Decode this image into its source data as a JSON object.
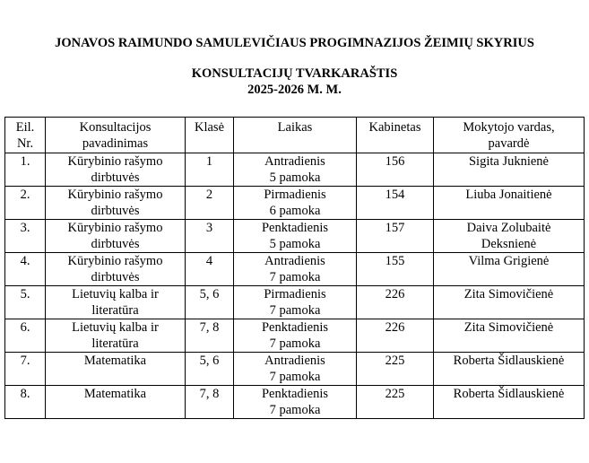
{
  "header": {
    "school": "JONAVOS RAIMUNDO SAMULEVIČIAUS PROGIMNAZIJOS ŽEIMIŲ SKYRIUS",
    "title": "KONSULTACIJŲ TVARKARAŠTIS",
    "year": "2025-2026 M. M."
  },
  "table": {
    "columns": [
      [
        "Eil.",
        "Nr."
      ],
      [
        "Konsultacijos",
        "pavadinimas"
      ],
      [
        "Klasė"
      ],
      [
        "Laikas"
      ],
      [
        "Kabinetas"
      ],
      [
        "Mokytojo vardas,",
        "pavardė"
      ]
    ],
    "rows": [
      [
        [
          "1."
        ],
        [
          "Kūrybinio rašymo",
          "dirbtuvės"
        ],
        [
          "1"
        ],
        [
          "Antradienis",
          "5 pamoka"
        ],
        [
          "156"
        ],
        [
          "Sigita Juknienė"
        ]
      ],
      [
        [
          "2."
        ],
        [
          "Kūrybinio rašymo",
          "dirbtuvės"
        ],
        [
          "2"
        ],
        [
          "Pirmadienis",
          "6 pamoka"
        ],
        [
          "154"
        ],
        [
          "Liuba Jonaitienė"
        ]
      ],
      [
        [
          "3."
        ],
        [
          "Kūrybinio rašymo",
          "dirbtuvės"
        ],
        [
          "3"
        ],
        [
          "Penktadienis",
          "5 pamoka"
        ],
        [
          "157"
        ],
        [
          "Daiva Zolubaitė",
          "Deksnienė"
        ]
      ],
      [
        [
          "4."
        ],
        [
          "Kūrybinio rašymo",
          "dirbtuvės"
        ],
        [
          "4"
        ],
        [
          "Antradienis",
          "7 pamoka"
        ],
        [
          "155"
        ],
        [
          "Vilma Grigienė"
        ]
      ],
      [
        [
          "5."
        ],
        [
          "Lietuvių kalba ir",
          "literatūra"
        ],
        [
          "5, 6"
        ],
        [
          "Pirmadienis",
          "7 pamoka"
        ],
        [
          "226"
        ],
        [
          "Zita Simovičienė"
        ]
      ],
      [
        [
          "6."
        ],
        [
          "Lietuvių kalba ir",
          "literatūra"
        ],
        [
          "7, 8"
        ],
        [
          "Penktadienis",
          "7 pamoka"
        ],
        [
          "226"
        ],
        [
          "Zita Simovičienė"
        ]
      ],
      [
        [
          "7."
        ],
        [
          "Matematika"
        ],
        [
          "5, 6"
        ],
        [
          "Antradienis",
          "7 pamoka"
        ],
        [
          "225"
        ],
        [
          "Roberta Šidlauskienė"
        ]
      ],
      [
        [
          "8."
        ],
        [
          "Matematika"
        ],
        [
          "7, 8"
        ],
        [
          "Penktadienis",
          "7 pamoka"
        ],
        [
          "225"
        ],
        [
          "Roberta Šidlauskienė"
        ]
      ]
    ]
  }
}
